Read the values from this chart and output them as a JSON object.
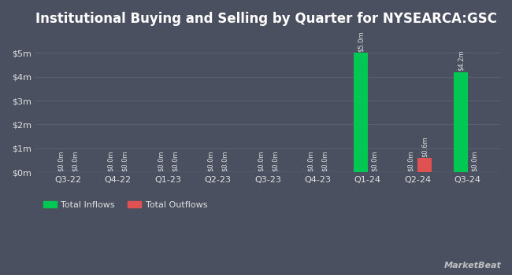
{
  "title": "Institutional Buying and Selling by Quarter for NYSEARCA:GSC",
  "quarters": [
    "Q3-22",
    "Q4-22",
    "Q1-23",
    "Q2-23",
    "Q3-23",
    "Q4-23",
    "Q1-24",
    "Q2-24",
    "Q3-24"
  ],
  "inflows": [
    0.0,
    0.0,
    0.0,
    0.0,
    0.0,
    0.0,
    5.0,
    0.0,
    4.2
  ],
  "outflows": [
    0.0,
    0.0,
    0.0,
    0.0,
    0.0,
    0.0,
    0.0,
    0.6,
    0.0
  ],
  "inflow_labels": [
    "$0.0m",
    "$0.0m",
    "$0.0m",
    "$0.0m",
    "$0.0m",
    "$0.0m",
    "$5.0m",
    "$0.0m",
    "$4.2m"
  ],
  "outflow_labels": [
    "$0.0m",
    "$0.0m",
    "$0.0m",
    "$0.0m",
    "$0.0m",
    "$0.0m",
    "$0.0m",
    "$0.6m",
    "$0.0m"
  ],
  "inflow_color": "#00c853",
  "outflow_color": "#e05252",
  "background_color": "#4a5060",
  "plot_bg_color": "#4a5060",
  "grid_color": "#5a6070",
  "text_color": "#e0e0e0",
  "title_color": "#ffffff",
  "title_fontsize": 12,
  "label_fontsize": 6,
  "tick_fontsize": 8,
  "legend_fontsize": 8,
  "yticks": [
    0,
    1,
    2,
    3,
    4,
    5
  ],
  "ytick_labels": [
    "$0m",
    "$1m",
    "$2m",
    "$3m",
    "$4m",
    "$5m"
  ],
  "ylim": [
    0,
    5.8
  ],
  "bar_width": 0.28,
  "watermark": "MarketBeat"
}
